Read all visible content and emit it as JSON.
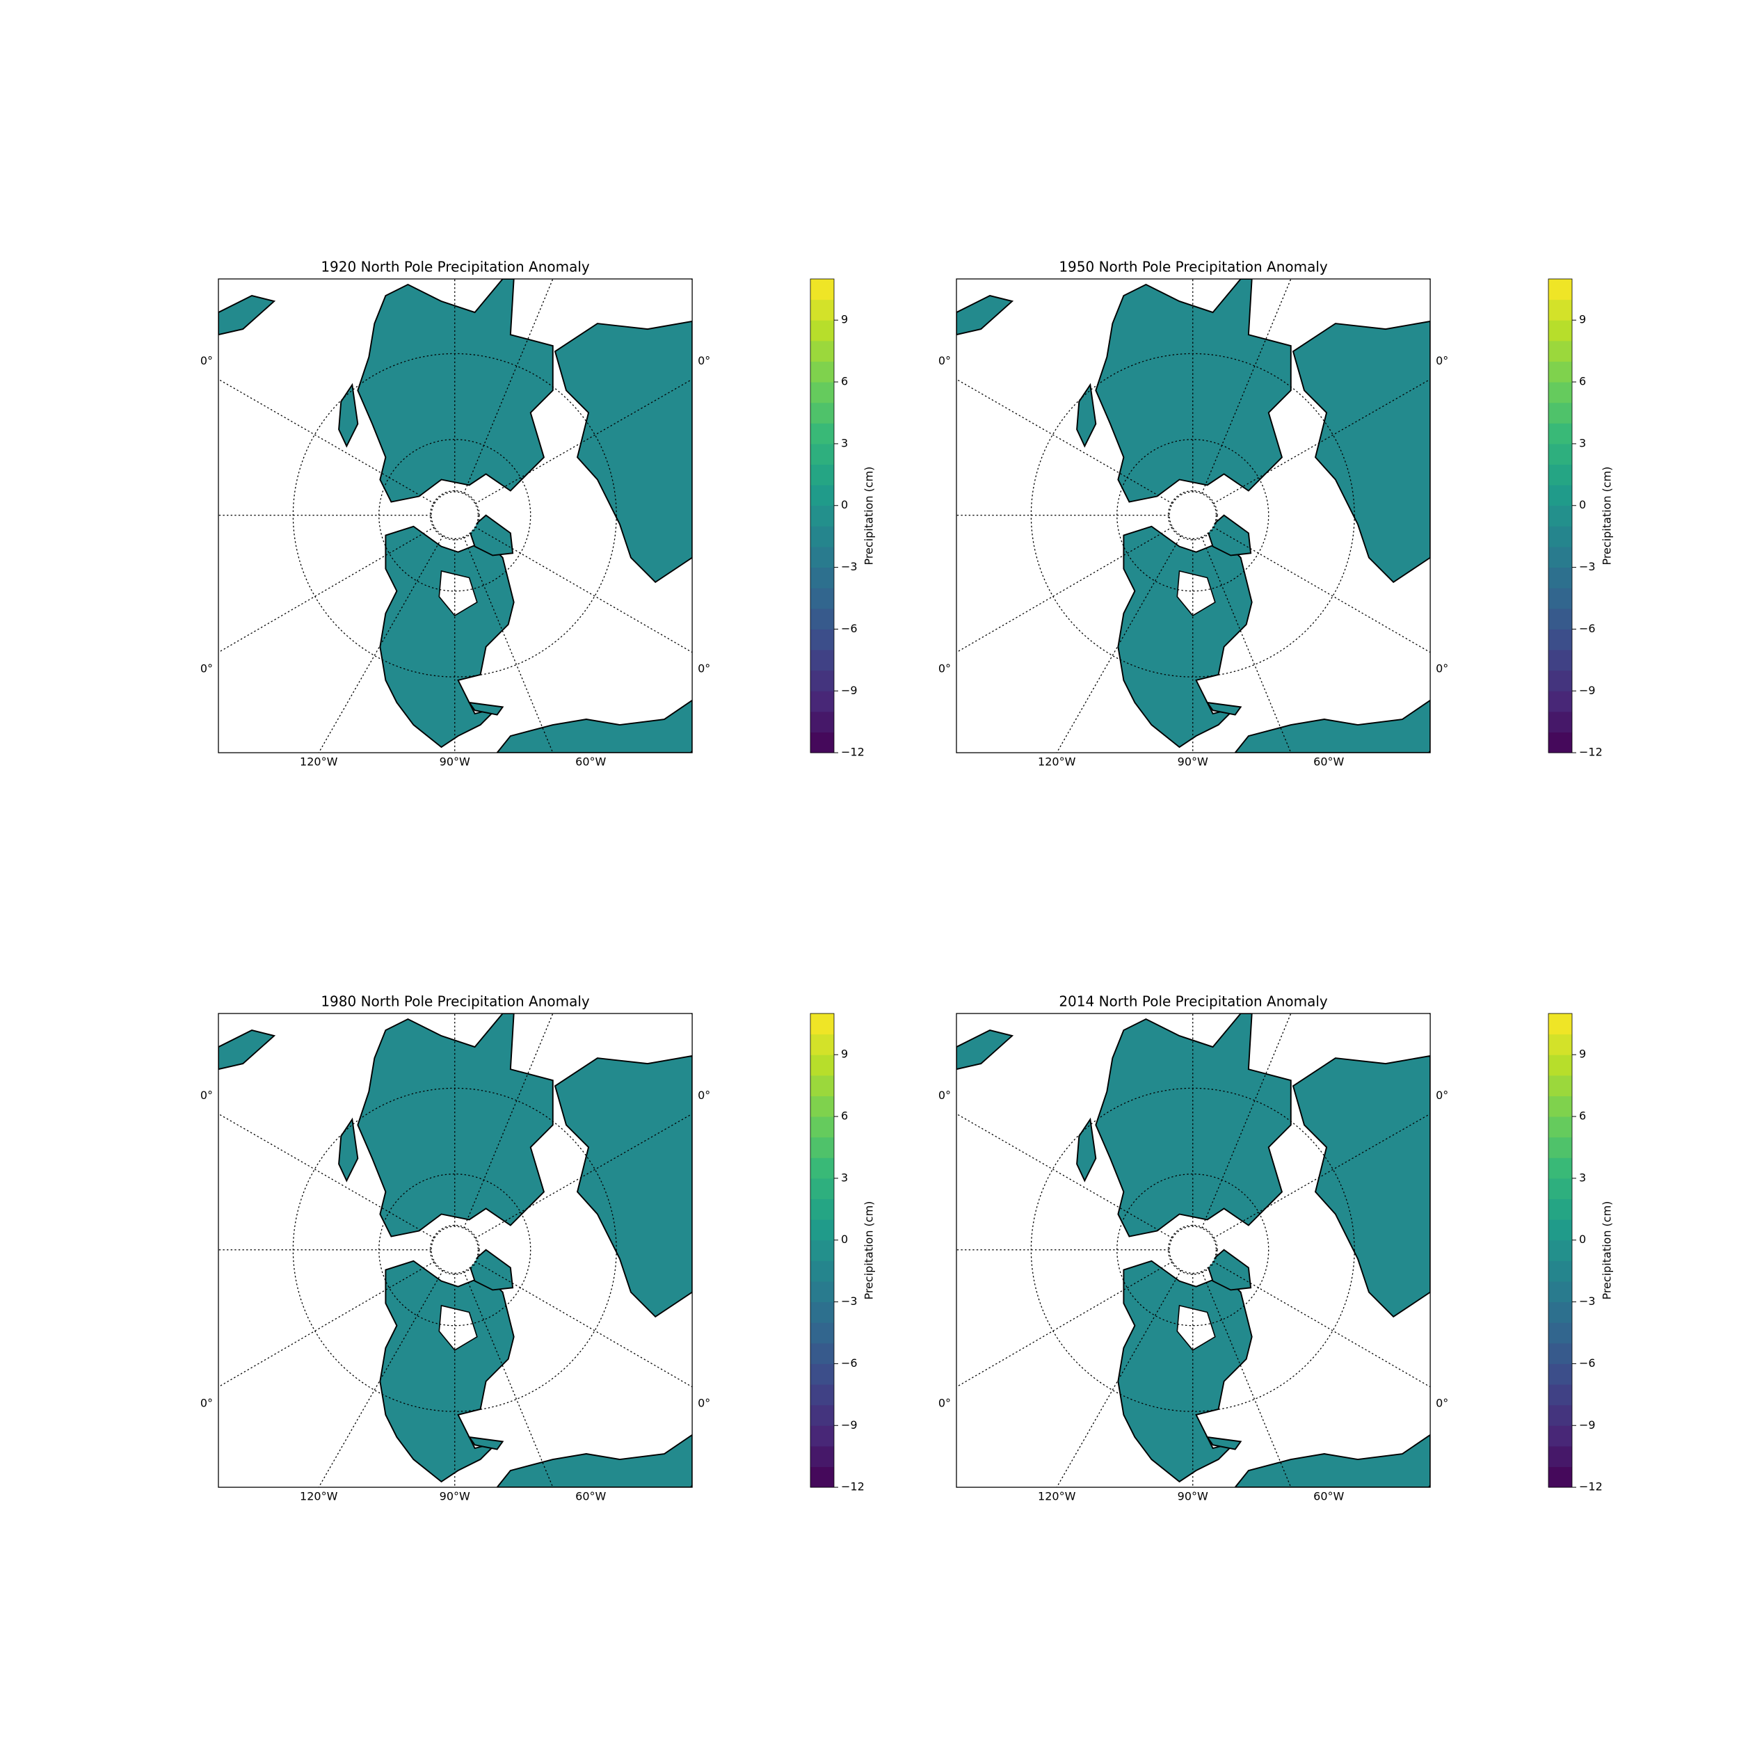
{
  "panels": [
    {
      "title": "1920 North Pole Precipitation Anomaly",
      "lon_labels": [
        "120°W",
        "90°W",
        "60°W"
      ],
      "lat_labels": [
        "0°",
        "0°",
        "0°",
        "0°"
      ],
      "colorbar": {
        "label": "Precipitation (cm)",
        "range": [
          -12,
          11
        ],
        "ticks": [
          {
            "value": -12,
            "label": "−12"
          },
          {
            "value": -9,
            "label": "−9"
          },
          {
            "value": -6,
            "label": "−6"
          },
          {
            "value": -3,
            "label": "−3"
          },
          0,
          3,
          6,
          9
        ]
      }
    },
    {
      "title": "1950 North Pole Precipitation Anomaly",
      "lon_labels": [
        "120°W",
        "90°W",
        "60°W"
      ],
      "lat_labels": [
        "0°",
        "0°",
        "0°",
        "0°"
      ],
      "colorbar": {
        "label": "Precipitation (cm)",
        "range": [
          -12,
          11
        ],
        "ticks": [
          {
            "value": -12,
            "label": "−12"
          },
          {
            "value": -9,
            "label": "−9"
          },
          {
            "value": -6,
            "label": "−6"
          },
          {
            "value": -3,
            "label": "−3"
          },
          0,
          3,
          6,
          9
        ]
      }
    },
    {
      "title": "1980 North Pole Precipitation Anomaly",
      "lon_labels": [
        "120°W",
        "90°W",
        "60°W"
      ],
      "lat_labels": [
        "0°",
        "0°",
        "0°",
        "0°"
      ],
      "colorbar": {
        "label": "Precipitation (cm)",
        "range": [
          -12,
          11
        ],
        "ticks": [
          {
            "value": -12,
            "label": "−12"
          },
          {
            "value": -9,
            "label": "−9"
          },
          {
            "value": -6,
            "label": "−6"
          },
          {
            "value": -3,
            "label": "−3"
          },
          0,
          3,
          6,
          9
        ]
      }
    },
    {
      "title": "2014 North Pole Precipitation Anomaly",
      "lon_labels": [
        "120°W",
        "90°W",
        "60°W"
      ],
      "lat_labels": [
        "0°",
        "0°",
        "0°",
        "0°"
      ],
      "colorbar": {
        "label": "Precipitation (cm)",
        "range": [
          -12,
          11
        ],
        "ticks": [
          {
            "value": -12,
            "label": "−12"
          },
          {
            "value": -9,
            "label": "−9"
          },
          {
            "value": -6,
            "label": "−6"
          },
          {
            "value": -3,
            "label": "−3"
          },
          0,
          3,
          6,
          9
        ]
      }
    }
  ]
}
